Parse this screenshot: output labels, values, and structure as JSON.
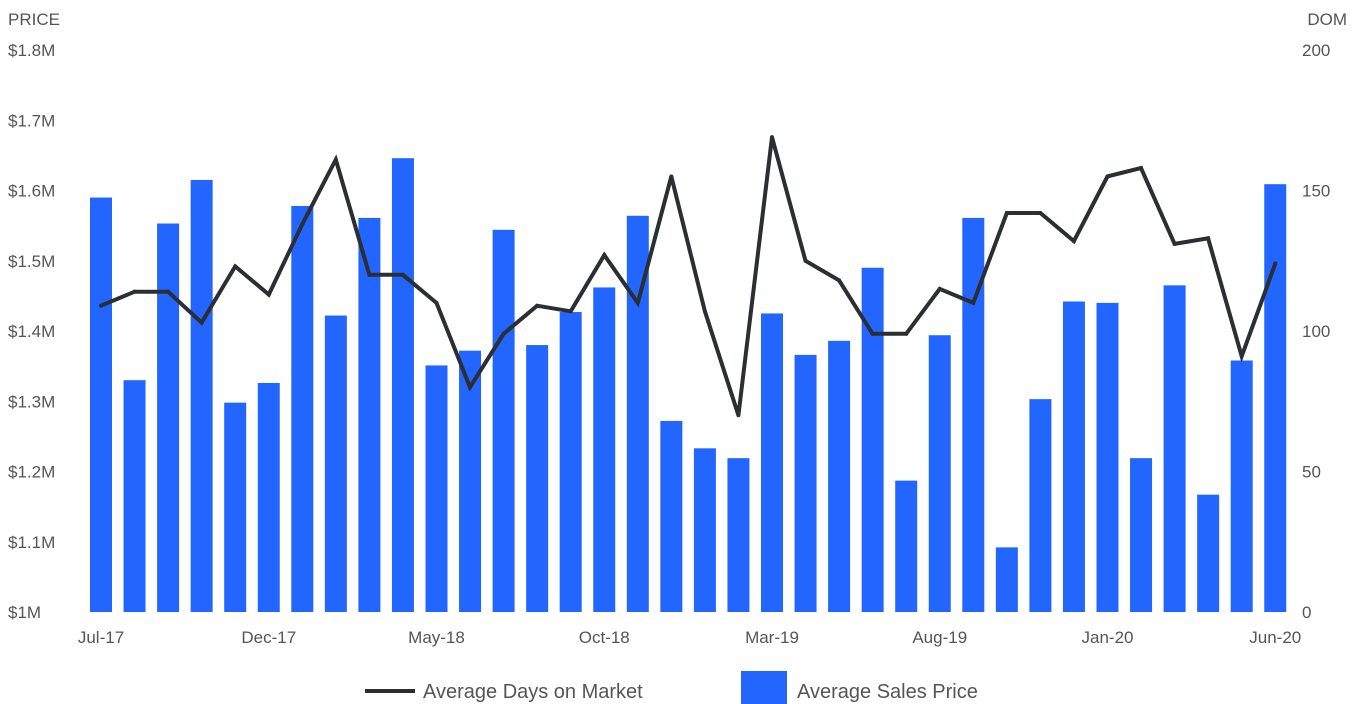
{
  "chart_data": {
    "type": "bar",
    "y_left_label": "PRICE",
    "y_right_label": "DOM",
    "y_left_ticks": [
      "$1M",
      "$1.1M",
      "$1.2M",
      "$1.3M",
      "$1.4M",
      "$1.5M",
      "$1.6M",
      "$1.7M",
      "$1.8M"
    ],
    "y_right_ticks": [
      "0",
      "50",
      "100",
      "150",
      "200"
    ],
    "y_left_range": [
      1.0,
      1.8
    ],
    "y_right_range": [
      0,
      200
    ],
    "x_tick_labels": [
      "Jul-17",
      "Dec-17",
      "May-18",
      "Oct-18",
      "Mar-19",
      "Aug-19",
      "Jan-20",
      "Jun-20"
    ],
    "x_tick_indices": [
      0,
      5,
      10,
      15,
      20,
      25,
      30,
      35
    ],
    "categories": [
      "Jul-17",
      "Aug-17",
      "Sep-17",
      "Oct-17",
      "Nov-17",
      "Dec-17",
      "Jan-18",
      "Feb-18",
      "Mar-18",
      "Apr-18",
      "May-18",
      "Jun-18",
      "Jul-18",
      "Aug-18",
      "Sep-18",
      "Oct-18",
      "Nov-18",
      "Dec-18",
      "Jan-19",
      "Feb-19",
      "Mar-19",
      "Apr-19",
      "May-19",
      "Jun-19",
      "Jul-19",
      "Aug-19",
      "Sep-19",
      "Oct-19",
      "Nov-19",
      "Dec-19",
      "Jan-20",
      "Feb-20",
      "Mar-20",
      "Apr-20",
      "May-20",
      "Jun-20"
    ],
    "series": [
      {
        "name": "Average Sales Price",
        "kind": "bar",
        "axis": "left",
        "color": "#2266ff",
        "values": [
          1.59,
          1.33,
          1.553,
          1.615,
          1.298,
          1.326,
          1.578,
          1.422,
          1.561,
          1.646,
          1.351,
          1.372,
          1.544,
          1.38,
          1.427,
          1.462,
          1.564,
          1.272,
          1.233,
          1.219,
          1.425,
          1.366,
          1.386,
          1.49,
          1.187,
          1.394,
          1.561,
          1.092,
          1.303,
          1.442,
          1.44,
          1.219,
          1.465,
          1.167,
          1.358,
          1.609
        ]
      },
      {
        "name": "Average Days on Market",
        "kind": "line",
        "axis": "right",
        "color": "#2b2e33",
        "values": [
          109,
          114,
          114,
          103,
          123,
          113,
          138,
          161,
          120,
          120,
          110,
          80,
          99,
          109,
          107,
          127,
          110,
          155,
          107,
          70,
          169,
          125,
          118,
          99,
          99,
          115,
          110,
          142,
          142,
          132,
          155,
          158,
          131,
          133,
          91,
          124
        ]
      }
    ],
    "legend": {
      "position": "bottom-center",
      "items": [
        {
          "label": "Average Days on Market",
          "kind": "line",
          "color": "#2b2e33"
        },
        {
          "label": "Average Sales Price",
          "kind": "bar",
          "color": "#2266ff"
        }
      ]
    },
    "grid": false
  }
}
